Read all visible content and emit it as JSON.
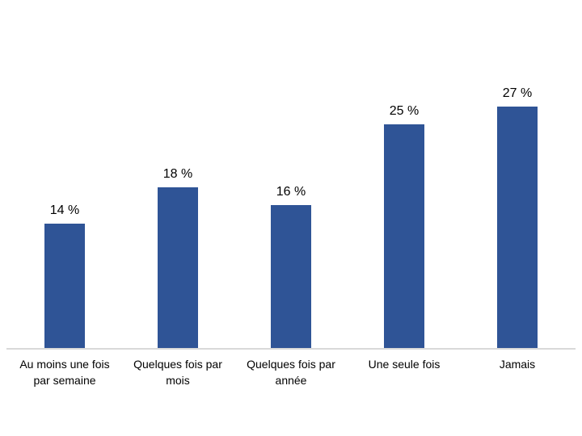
{
  "chart_data": {
    "type": "bar",
    "title": "",
    "xlabel": "",
    "ylabel": "",
    "categories": [
      "Au moins une fois\npar semaine",
      "Quelques fois par\nmois",
      "Quelques fois par\nannée",
      "Une seule fois",
      "Jamais"
    ],
    "values": [
      14,
      18,
      16,
      25,
      27
    ],
    "value_labels": [
      "14 %",
      "18 %",
      "16 %",
      "25 %",
      "27 %"
    ],
    "ylim": [
      0,
      30
    ],
    "grid": false,
    "legend": "none",
    "data_label_position": "above-bar",
    "bar_color": "#2F5496",
    "axis_line_color": "#D9D9D9",
    "background_color": "#FFFFFF",
    "text_color": "#000000"
  }
}
